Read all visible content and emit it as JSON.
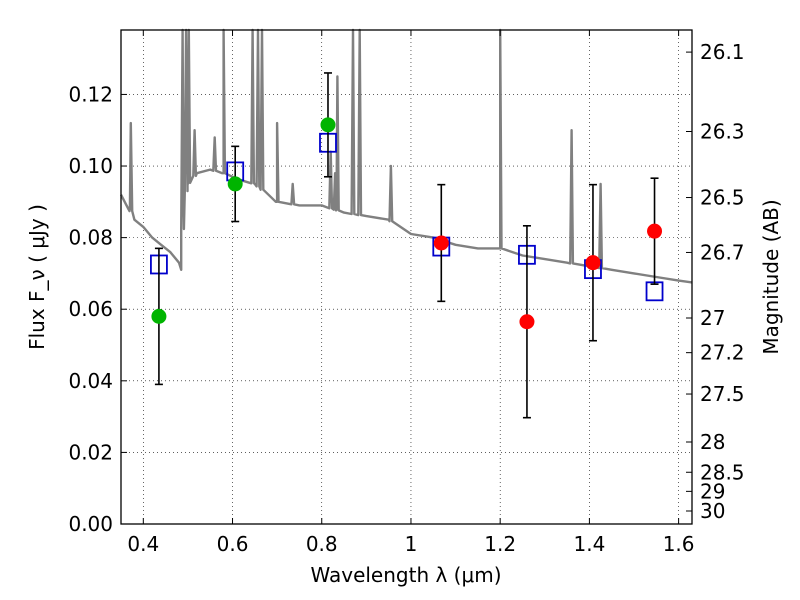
{
  "chart_data": {
    "type": "scatter",
    "xlabel": "Wavelength  λ (μm)",
    "ylabel": "Flux  F_ν  ( μJy )",
    "y2label": "Magnitude (AB)",
    "xlim": [
      0.35,
      1.63
    ],
    "ylim": [
      0.0,
      0.138
    ],
    "x_ticks": [
      0.4,
      0.6,
      0.8,
      1.0,
      1.2,
      1.4,
      1.6
    ],
    "x_tick_labels": [
      "0.4",
      "0.6",
      "0.8",
      "1",
      "1.2",
      "1.4",
      "1.6"
    ],
    "y_ticks": [
      0.0,
      0.02,
      0.04,
      0.06,
      0.08,
      0.1,
      0.12
    ],
    "y_tick_labels": [
      "0.00",
      "0.02",
      "0.04",
      "0.06",
      "0.08",
      "0.10",
      "0.12"
    ],
    "mag_ticks": [
      26.1,
      26.3,
      26.5,
      26.7,
      27,
      27.2,
      27.5,
      28,
      28.5,
      29,
      30
    ],
    "mag_tick_labels": [
      "26.1",
      "26.3",
      "26.5",
      "26.7",
      "27",
      "27.2",
      "27.5",
      "28",
      "28.5",
      "29",
      "30"
    ],
    "grid": true,
    "colors": {
      "model": "#808080",
      "green": "#00b400",
      "red": "#ff0000",
      "square": "#0000cc",
      "errorbar": "#000000"
    },
    "series": [
      {
        "name": "model spectrum",
        "kind": "line",
        "x": [
          0.35,
          0.37,
          0.38,
          0.4,
          0.42,
          0.44,
          0.46,
          0.48,
          0.485,
          0.49,
          0.5,
          0.52,
          0.55,
          0.58,
          0.6,
          0.62,
          0.65,
          0.7,
          0.75,
          0.8,
          0.85,
          0.9,
          0.95,
          1.0,
          1.05,
          1.1,
          1.15,
          1.2,
          1.25,
          1.3,
          1.35,
          1.4,
          1.45,
          1.5,
          1.55,
          1.6,
          1.63
        ],
        "y": [
          0.092,
          0.088,
          0.085,
          0.083,
          0.08,
          0.078,
          0.076,
          0.073,
          0.071,
          0.09,
          0.095,
          0.098,
          0.099,
          0.098,
          0.097,
          0.096,
          0.095,
          0.09,
          0.089,
          0.089,
          0.087,
          0.086,
          0.085,
          0.081,
          0.08,
          0.078,
          0.077,
          0.077,
          0.075,
          0.074,
          0.073,
          0.072,
          0.071,
          0.07,
          0.069,
          0.068,
          0.0675
        ],
        "peaks": [
          {
            "x": 0.372,
            "y": 0.112
          },
          {
            "x": 0.488,
            "y": 0.138
          },
          {
            "x": 0.496,
            "y": 0.138
          },
          {
            "x": 0.502,
            "y": 0.138
          },
          {
            "x": 0.515,
            "y": 0.11
          },
          {
            "x": 0.56,
            "y": 0.108
          },
          {
            "x": 0.58,
            "y": 0.138
          },
          {
            "x": 0.645,
            "y": 0.138
          },
          {
            "x": 0.657,
            "y": 0.138
          },
          {
            "x": 0.666,
            "y": 0.138
          },
          {
            "x": 0.7,
            "y": 0.112
          },
          {
            "x": 0.735,
            "y": 0.095
          },
          {
            "x": 0.82,
            "y": 0.104
          },
          {
            "x": 0.83,
            "y": 0.098
          },
          {
            "x": 0.835,
            "y": 0.125
          },
          {
            "x": 0.87,
            "y": 0.138
          },
          {
            "x": 0.885,
            "y": 0.138
          },
          {
            "x": 0.955,
            "y": 0.1
          },
          {
            "x": 1.2,
            "y": 0.138
          },
          {
            "x": 1.36,
            "y": 0.11
          },
          {
            "x": 1.425,
            "y": 0.095
          }
        ]
      },
      {
        "name": "observed (green)",
        "kind": "points",
        "color": "green",
        "points": [
          {
            "x": 0.435,
            "y": 0.058,
            "err": 0.019
          },
          {
            "x": 0.606,
            "y": 0.095,
            "err": 0.0105
          },
          {
            "x": 0.814,
            "y": 0.1115,
            "err": 0.0145
          }
        ]
      },
      {
        "name": "observed (red)",
        "kind": "points",
        "color": "red",
        "points": [
          {
            "x": 1.068,
            "y": 0.0785,
            "err": 0.0163
          },
          {
            "x": 1.26,
            "y": 0.0565,
            "err": 0.0268
          },
          {
            "x": 1.408,
            "y": 0.073,
            "err": 0.0218
          },
          {
            "x": 1.546,
            "y": 0.0818,
            "err": 0.0148
          }
        ]
      },
      {
        "name": "model photometry",
        "kind": "squares",
        "color": "square",
        "points": [
          {
            "x": 0.435,
            "y": 0.0725
          },
          {
            "x": 0.606,
            "y": 0.0985
          },
          {
            "x": 0.814,
            "y": 0.1065
          },
          {
            "x": 1.068,
            "y": 0.0775
          },
          {
            "x": 1.26,
            "y": 0.0752
          },
          {
            "x": 1.408,
            "y": 0.0712
          },
          {
            "x": 1.546,
            "y": 0.065
          }
        ]
      }
    ]
  }
}
